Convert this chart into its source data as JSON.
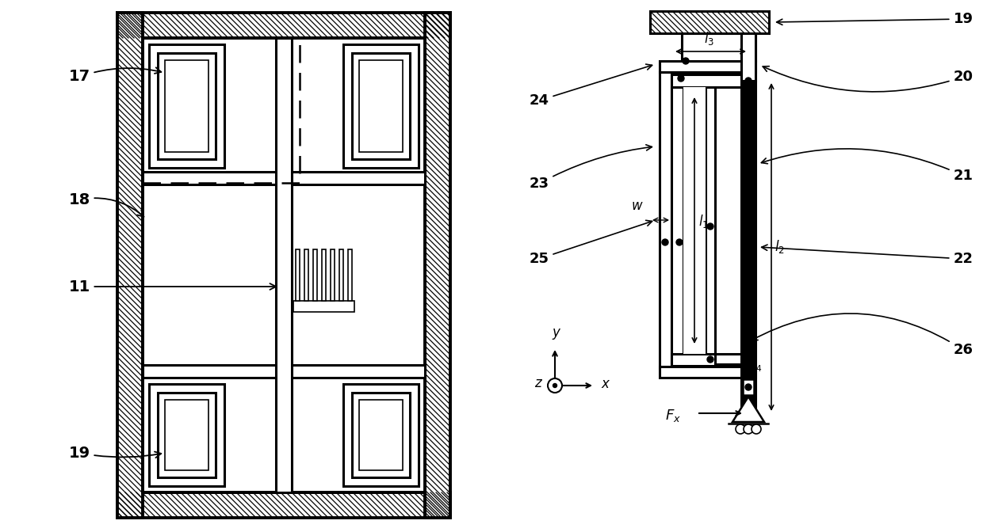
{
  "fig_width": 12.4,
  "fig_height": 6.72,
  "bg_color": "#ffffff",
  "lc": "#000000"
}
